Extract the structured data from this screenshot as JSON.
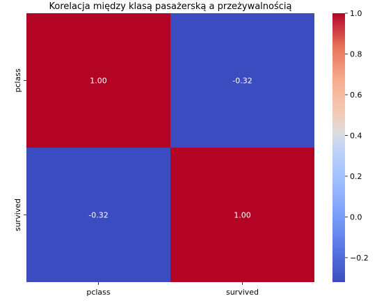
{
  "chart_data": {
    "type": "heatmap",
    "title": "Korelacja między klasą pasażerską a przeżywalnością",
    "xlabel": "",
    "ylabel": "",
    "x_categories": [
      "pclass",
      "survived"
    ],
    "y_categories": [
      "pclass",
      "survived"
    ],
    "values": [
      [
        1.0,
        -0.32
      ],
      [
        -0.32,
        1.0
      ]
    ],
    "annotations": [
      [
        "1.00",
        "-0.32"
      ],
      [
        "-0.32",
        "1.00"
      ]
    ],
    "colormap": "coolwarm",
    "colorbar": {
      "vmin": -0.32,
      "vmax": 1.0,
      "ticks": [
        -0.2,
        0.0,
        0.2,
        0.4,
        0.6,
        0.8,
        1.0
      ],
      "tick_labels": [
        "−0.2",
        "0.0",
        "0.2",
        "0.4",
        "0.6",
        "0.8",
        "1.0"
      ]
    },
    "colors": {
      "high": "#b40426",
      "low": "#3b4cc0",
      "annotation_text": "#ffffff"
    },
    "grid": false
  }
}
